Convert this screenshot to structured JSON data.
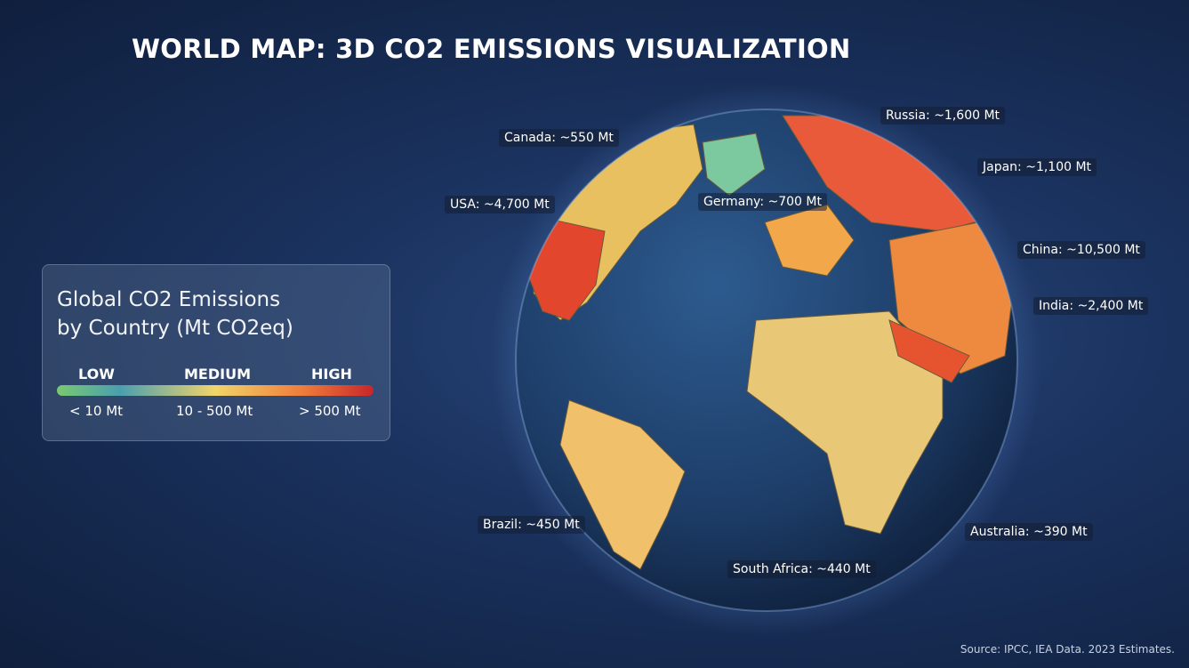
{
  "header": {
    "title": "WORLD MAP: 3D CO2 EMISSIONS VISUALIZATION"
  },
  "legend": {
    "title_lines": [
      "Global CO2 Emissions",
      "by Country (Mt CO2eq)"
    ],
    "levels": [
      "LOW",
      "MEDIUM",
      "HIGH"
    ],
    "ranges": [
      "< 10 Mt",
      "10 - 500 Mt",
      "> 500 Mt"
    ]
  },
  "map_labels": [
    "Russia: ~1,600 Mt",
    "Canada: ~550 Mt",
    "Japan: ~1,100 Mt",
    "USA: ~4,700 Mt",
    "Germany: ~700 Mt",
    "China: ~10,500 Mt",
    "India: ~2,400 Mt",
    "Brazil: ~450 Mt",
    "Australia: ~390 Mt",
    "South Africa: ~440 Mt"
  ],
  "footer": {
    "source": "Source: IPCC, IEA Data. 2023 Estimates."
  }
}
